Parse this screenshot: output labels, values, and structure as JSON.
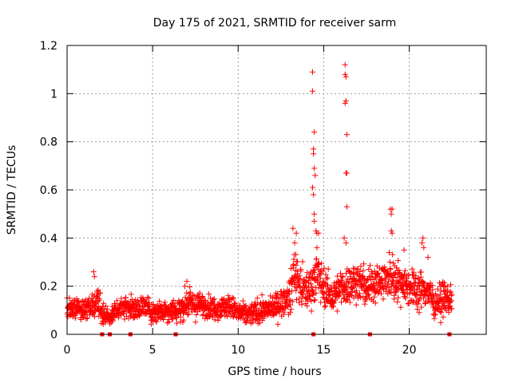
{
  "chart_data": {
    "type": "scatter",
    "title": "Day 175 of 2021, SRMTID for receiver sarm",
    "xlabel": "GPS time / hours",
    "ylabel": "SRMTID / TECUs",
    "xlim": [
      0,
      24.5
    ],
    "ylim": [
      0,
      1.2
    ],
    "x_ticks": [
      0,
      5,
      10,
      15,
      20
    ],
    "x_tick_labels": [
      "0",
      "5",
      "10",
      "15",
      "20"
    ],
    "y_ticks": [
      0,
      0.2,
      0.4,
      0.6,
      0.8,
      1.0,
      1.2
    ],
    "y_tick_labels": [
      "0",
      "0.2",
      "0.4",
      "0.6",
      "0.8",
      "1",
      "1.2"
    ],
    "grid": true,
    "series": [
      {
        "name": "SRMTID",
        "color": "#ff0000",
        "marker": "plus",
        "sampled_profile": {
          "x": [
            0,
            0.5,
            1.0,
            1.5,
            1.8,
            2.0,
            2.5,
            3.0,
            3.5,
            4.0,
            4.5,
            5.0,
            5.5,
            6.0,
            6.5,
            7.0,
            7.5,
            8.0,
            8.5,
            9.0,
            9.5,
            10.0,
            10.5,
            11.0,
            11.5,
            12.0,
            12.5,
            13.0,
            13.3,
            13.6,
            14.0,
            14.4,
            14.6,
            15.0,
            15.5,
            16.0,
            16.5,
            17.0,
            17.5,
            18.0,
            18.5,
            19.0,
            19.5,
            20.0,
            20.5,
            21.0,
            21.5,
            22.0,
            22.5
          ],
          "typical": [
            0.11,
            0.11,
            0.1,
            0.12,
            0.15,
            0.09,
            0.07,
            0.11,
            0.12,
            0.1,
            0.12,
            0.09,
            0.1,
            0.1,
            0.1,
            0.13,
            0.12,
            0.12,
            0.11,
            0.11,
            0.12,
            0.09,
            0.08,
            0.09,
            0.1,
            0.11,
            0.13,
            0.15,
            0.27,
            0.2,
            0.18,
            0.22,
            0.25,
            0.2,
            0.15,
            0.19,
            0.21,
            0.22,
            0.19,
            0.22,
            0.22,
            0.24,
            0.22,
            0.2,
            0.18,
            0.19,
            0.13,
            0.15,
            0.14
          ],
          "spread": [
            0.04,
            0.04,
            0.04,
            0.05,
            0.06,
            0.03,
            0.03,
            0.04,
            0.04,
            0.04,
            0.04,
            0.04,
            0.04,
            0.04,
            0.05,
            0.05,
            0.05,
            0.04,
            0.04,
            0.04,
            0.04,
            0.04,
            0.04,
            0.04,
            0.04,
            0.04,
            0.05,
            0.06,
            0.1,
            0.07,
            0.07,
            0.08,
            0.09,
            0.07,
            0.06,
            0.07,
            0.07,
            0.07,
            0.07,
            0.07,
            0.07,
            0.08,
            0.07,
            0.07,
            0.07,
            0.07,
            0.05,
            0.06,
            0.05
          ]
        },
        "outliers": [
          {
            "x": 1.55,
            "y": 0.26
          },
          {
            "x": 1.6,
            "y": 0.24
          },
          {
            "x": 7.0,
            "y": 0.22
          },
          {
            "x": 13.2,
            "y": 0.44
          },
          {
            "x": 13.4,
            "y": 0.42
          },
          {
            "x": 13.3,
            "y": 0.38
          },
          {
            "x": 14.35,
            "y": 1.09
          },
          {
            "x": 14.35,
            "y": 1.01
          },
          {
            "x": 14.45,
            "y": 0.84
          },
          {
            "x": 14.4,
            "y": 0.77
          },
          {
            "x": 14.4,
            "y": 0.75
          },
          {
            "x": 14.45,
            "y": 0.69
          },
          {
            "x": 14.5,
            "y": 0.66
          },
          {
            "x": 14.35,
            "y": 0.61
          },
          {
            "x": 14.4,
            "y": 0.58
          },
          {
            "x": 14.45,
            "y": 0.5
          },
          {
            "x": 14.45,
            "y": 0.47
          },
          {
            "x": 14.55,
            "y": 0.43
          },
          {
            "x": 14.6,
            "y": 0.42
          },
          {
            "x": 14.7,
            "y": 0.42
          },
          {
            "x": 14.6,
            "y": 0.36
          },
          {
            "x": 16.25,
            "y": 1.12
          },
          {
            "x": 16.25,
            "y": 1.08
          },
          {
            "x": 16.3,
            "y": 1.07
          },
          {
            "x": 16.3,
            "y": 0.97
          },
          {
            "x": 16.25,
            "y": 0.96
          },
          {
            "x": 16.35,
            "y": 0.83
          },
          {
            "x": 16.3,
            "y": 0.67
          },
          {
            "x": 16.35,
            "y": 0.67
          },
          {
            "x": 16.35,
            "y": 0.53
          },
          {
            "x": 16.2,
            "y": 0.4
          },
          {
            "x": 16.3,
            "y": 0.38
          },
          {
            "x": 18.9,
            "y": 0.52
          },
          {
            "x": 19.0,
            "y": 0.52
          },
          {
            "x": 18.95,
            "y": 0.5
          },
          {
            "x": 18.95,
            "y": 0.43
          },
          {
            "x": 19.0,
            "y": 0.42
          },
          {
            "x": 20.8,
            "y": 0.4
          },
          {
            "x": 20.75,
            "y": 0.38
          },
          {
            "x": 20.85,
            "y": 0.36
          },
          {
            "x": 21.1,
            "y": 0.32
          },
          {
            "x": 19.7,
            "y": 0.35
          }
        ],
        "zero_markers_x": [
          2.05,
          2.5,
          3.7,
          6.35,
          14.4,
          17.7,
          22.35
        ]
      }
    ]
  }
}
